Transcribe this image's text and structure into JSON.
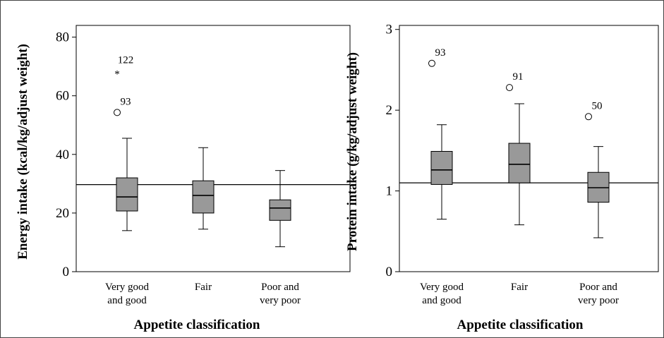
{
  "chart_data": [
    {
      "type": "boxplot",
      "ylabel": "Energy intake (kcal/kg/adjust weight)",
      "xlabel": "Appetite classification",
      "ylim": [
        0,
        84
      ],
      "yticks": [
        "0",
        "20",
        "40",
        "60",
        "80"
      ],
      "ytick_values": [
        0,
        20,
        40,
        60,
        80
      ],
      "categories": [
        {
          "line1": "Very good",
          "line2": "and good"
        },
        {
          "line1": "Fair",
          "line2": ""
        },
        {
          "line1": "Poor and",
          "line2": "very poor"
        }
      ],
      "boxes": [
        {
          "whisker_low": 14,
          "q1": 20.7,
          "median": 25.5,
          "q3": 32,
          "whisker_high": 45.5
        },
        {
          "whisker_low": 14.5,
          "q1": 20,
          "median": 26,
          "q3": 31,
          "whisker_high": 42.3
        },
        {
          "whisker_low": 8.5,
          "q1": 17.5,
          "median": 21.7,
          "q3": 24.5,
          "whisker_high": 34.5
        }
      ],
      "outliers": [
        {
          "category": 0,
          "value": 54.3,
          "marker": "circle",
          "label": "93"
        },
        {
          "category": 0,
          "value": 68.5,
          "marker": "star",
          "label": "122"
        }
      ],
      "reference_line": 29.7
    },
    {
      "type": "boxplot",
      "ylabel": "Protein intake (g/kg/adjust weight)",
      "xlabel": "Appetite classification",
      "ylim": [
        0,
        3.05
      ],
      "yticks": [
        "0",
        "1",
        "2",
        "3"
      ],
      "ytick_values": [
        0,
        1,
        2,
        3
      ],
      "categories": [
        {
          "line1": "Very good",
          "line2": "and good"
        },
        {
          "line1": "Fair",
          "line2": ""
        },
        {
          "line1": "Poor and",
          "line2": "very poor"
        }
      ],
      "boxes": [
        {
          "whisker_low": 0.65,
          "q1": 1.08,
          "median": 1.26,
          "q3": 1.49,
          "whisker_high": 1.82
        },
        {
          "whisker_low": 0.58,
          "q1": 1.1,
          "median": 1.33,
          "q3": 1.59,
          "whisker_high": 2.08
        },
        {
          "whisker_low": 0.42,
          "q1": 0.86,
          "median": 1.04,
          "q3": 1.23,
          "whisker_high": 1.55
        }
      ],
      "outliers": [
        {
          "category": 0,
          "value": 2.58,
          "marker": "circle",
          "label": "93"
        },
        {
          "category": 1,
          "value": 2.28,
          "marker": "circle",
          "label": "91"
        },
        {
          "category": 2,
          "value": 1.92,
          "marker": "circle",
          "label": "50"
        }
      ],
      "reference_line": 1.1
    }
  ],
  "colors": {
    "box_fill": "#999999",
    "line": "#000000",
    "frame": "#444444"
  }
}
